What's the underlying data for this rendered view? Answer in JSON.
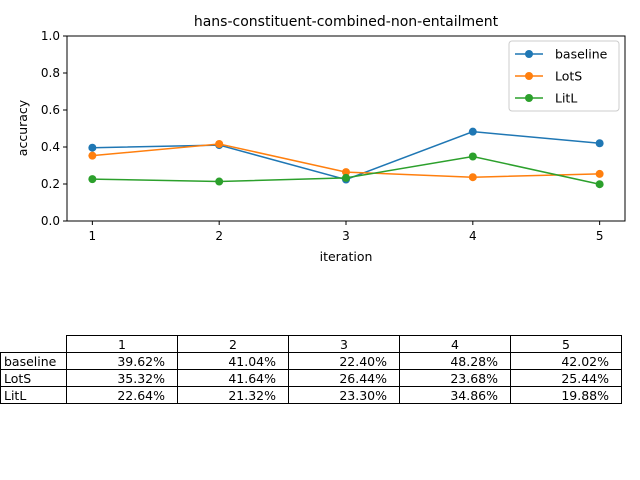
{
  "chart_data": {
    "type": "line",
    "title": "hans-constituent-combined-non-entailment",
    "xlabel": "iteration",
    "ylabel": "accuracy",
    "x": [
      1,
      2,
      3,
      4,
      5
    ],
    "xticks": [
      "1",
      "2",
      "3",
      "4",
      "5"
    ],
    "ylim": [
      0.0,
      1.0
    ],
    "yticks": [
      "0.0",
      "0.2",
      "0.4",
      "0.6",
      "0.8",
      "1.0"
    ],
    "grid": false,
    "legend_position": "top-right",
    "series": [
      {
        "name": "baseline",
        "color": "#1f77b4",
        "values": [
          0.3962,
          0.4104,
          0.224,
          0.4828,
          0.4202
        ]
      },
      {
        "name": "LotS",
        "color": "#ff7f0e",
        "values": [
          0.3532,
          0.4164,
          0.2644,
          0.2368,
          0.2544
        ]
      },
      {
        "name": "LitL",
        "color": "#2ca02c",
        "values": [
          0.2264,
          0.2132,
          0.233,
          0.3486,
          0.1988
        ]
      }
    ],
    "table": {
      "columns": [
        "1",
        "2",
        "3",
        "4",
        "5"
      ],
      "rows": [
        {
          "label": "baseline",
          "cells": [
            "39.62%",
            "41.04%",
            "22.40%",
            "48.28%",
            "42.02%"
          ]
        },
        {
          "label": "LotS",
          "cells": [
            "35.32%",
            "41.64%",
            "26.44%",
            "23.68%",
            "25.44%"
          ]
        },
        {
          "label": "LitL",
          "cells": [
            "22.64%",
            "21.32%",
            "23.30%",
            "34.86%",
            "19.88%"
          ]
        }
      ]
    }
  }
}
